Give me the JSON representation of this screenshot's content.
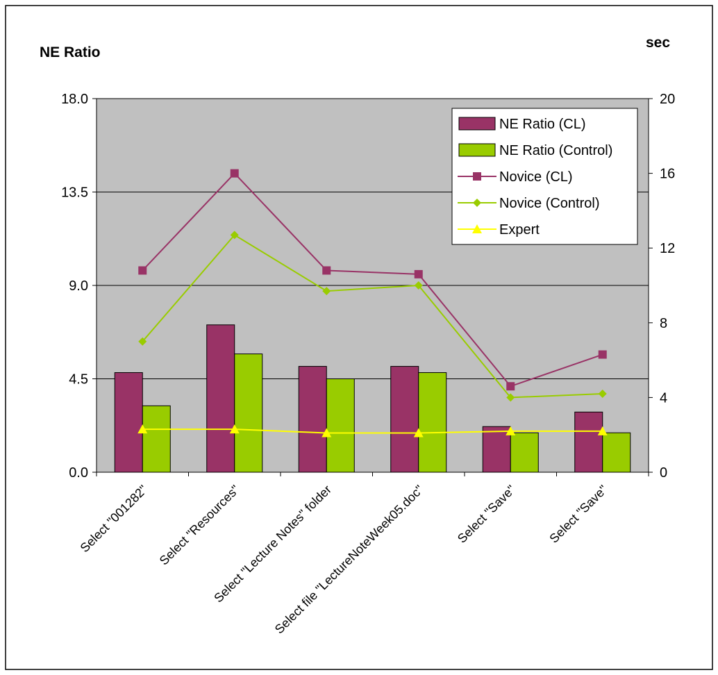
{
  "chart_data": {
    "type": "bar",
    "left_axis_title": "NE Ratio",
    "right_axis_title": "sec",
    "categories": [
      "Select \"001282\"",
      "Select \"Resources\"",
      "Select \"Lecture Notes\" folder",
      "Select file \"LectureNoteWeek05.doc\"",
      "Select \"Save\"",
      "Select \"Save\""
    ],
    "left_axis": {
      "min": 0,
      "max": 18,
      "ticks": [
        "0.0",
        "4.5",
        "9.0",
        "13.5",
        "18.0"
      ],
      "tick_values": [
        0,
        4.5,
        9,
        13.5,
        18
      ]
    },
    "right_axis": {
      "min": 0,
      "max": 20,
      "ticks": [
        "0",
        "4",
        "8",
        "12",
        "16",
        "20"
      ],
      "tick_values": [
        0,
        4,
        8,
        12,
        16,
        20
      ]
    },
    "grid": true,
    "legend_position": "top-right",
    "series": [
      {
        "name": "NE Ratio (CL)",
        "kind": "bar",
        "axis": "left",
        "color": "#993366",
        "values": [
          4.8,
          7.1,
          5.1,
          5.1,
          2.2,
          2.9
        ]
      },
      {
        "name": "NE Ratio (Control)",
        "kind": "bar",
        "axis": "left",
        "color": "#99CC00",
        "values": [
          3.2,
          5.7,
          4.5,
          4.8,
          1.9,
          1.9
        ]
      },
      {
        "name": "Novice (CL)",
        "kind": "line",
        "marker": "square",
        "axis": "right",
        "color": "#993366",
        "values": [
          10.8,
          16.0,
          10.8,
          10.6,
          4.6,
          6.3
        ]
      },
      {
        "name": "Novice (Control)",
        "kind": "line",
        "marker": "diamond",
        "axis": "right",
        "color": "#99CC00",
        "values": [
          7.0,
          12.7,
          9.7,
          10.0,
          4.0,
          4.2
        ]
      },
      {
        "name": "Expert",
        "kind": "line",
        "marker": "triangle",
        "axis": "right",
        "color": "#FFFF00",
        "values": [
          2.3,
          2.3,
          2.1,
          2.1,
          2.2,
          2.2
        ]
      }
    ]
  }
}
